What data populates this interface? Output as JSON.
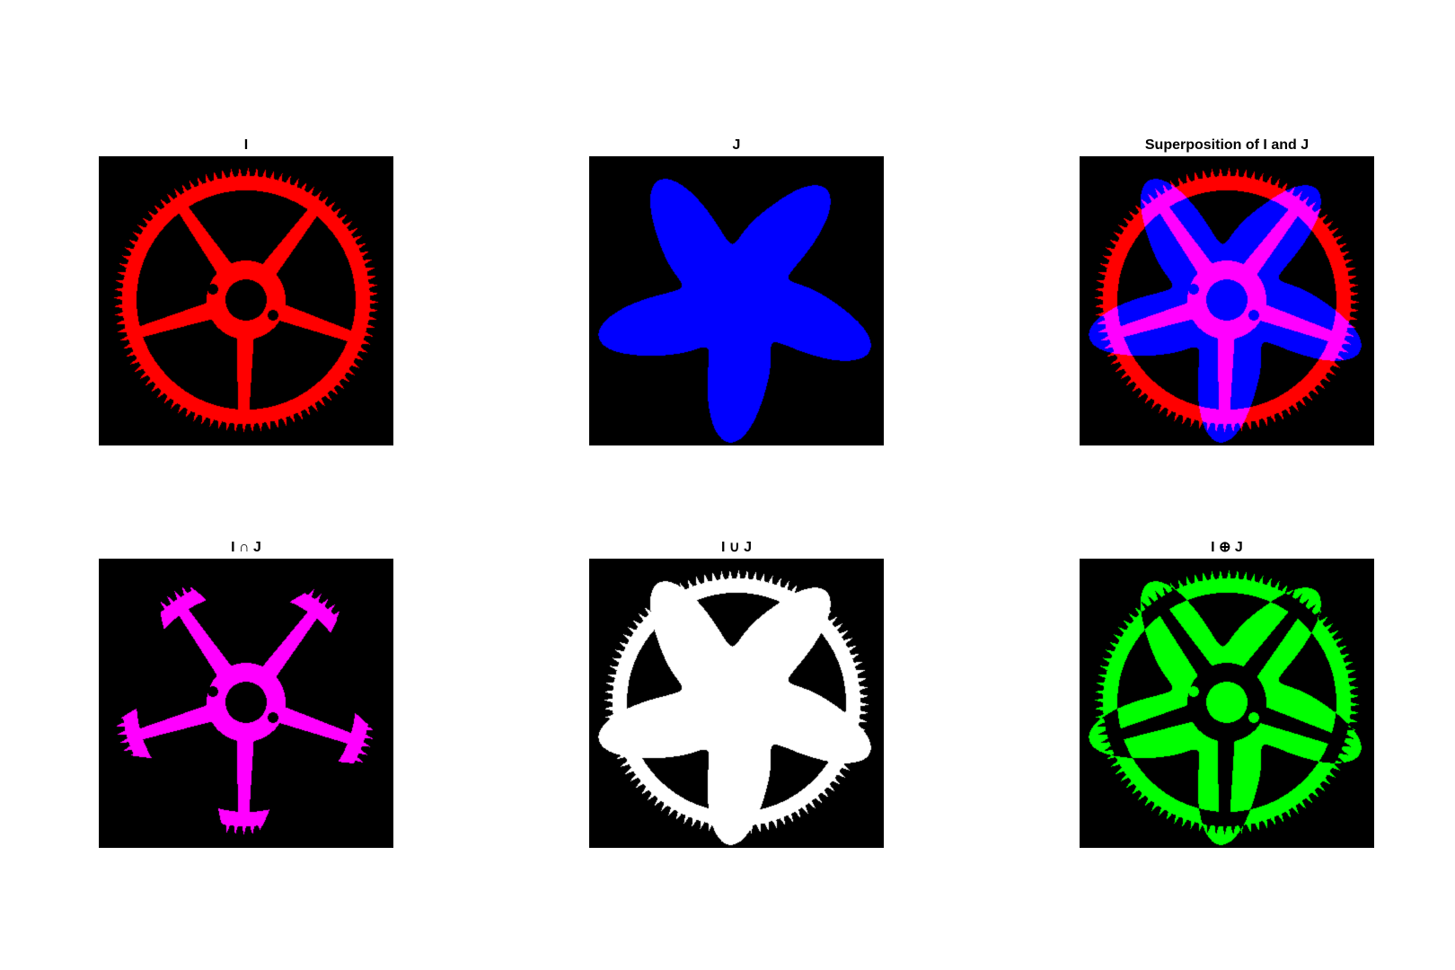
{
  "figure": {
    "background": "#ffffff",
    "image_background": "#000000",
    "panels": [
      {
        "title": "I",
        "operation": "I",
        "color": "#ff0000"
      },
      {
        "title": "J",
        "operation": "J",
        "color": "#0000ff"
      },
      {
        "title": "Superposition of I and J",
        "operation": "superposition",
        "color_I": "#ff0000",
        "color_J": "#0000ff",
        "color_overlap": "#ff00ff"
      },
      {
        "title": "I ∩ J",
        "operation": "intersection",
        "color": "#ff00ff"
      },
      {
        "title": "I ∪ J",
        "operation": "union",
        "color": "#ffffff"
      },
      {
        "title": "I ⊕ J",
        "operation": "xor",
        "color": "#00ff00"
      }
    ]
  }
}
